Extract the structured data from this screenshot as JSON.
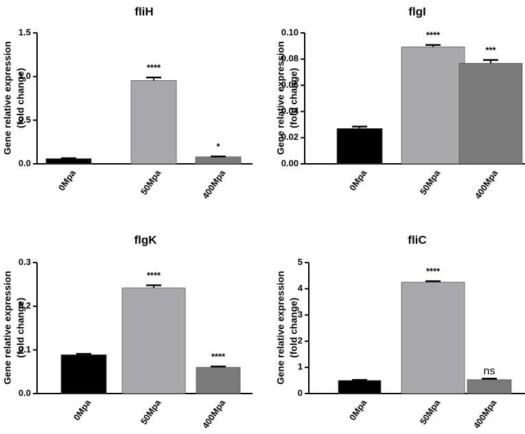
{
  "chart_data": [
    {
      "type": "bar",
      "title": "fliH",
      "ylabel_line1": "Gene relative expression",
      "ylabel_line2": "(fold change)",
      "categories": [
        "0Mpa",
        "50Mpa",
        "400Mpa"
      ],
      "values": [
        0.06,
        0.955,
        0.08
      ],
      "errors": [
        0.005,
        0.035,
        0.005
      ],
      "colors": [
        "#000000",
        "#a9a9ab",
        "#7a7a7a"
      ],
      "significance": [
        "",
        "****",
        "*"
      ],
      "ylim": [
        0,
        1.5
      ],
      "yticks": [
        0.0,
        0.5,
        1.0,
        1.5
      ],
      "ytick_labels": [
        "0.0",
        "0.5",
        "1.0",
        "1.5"
      ]
    },
    {
      "type": "bar",
      "title": "flgI",
      "ylabel_line1": "Gene relative expression",
      "ylabel_line2": "(fold change)",
      "categories": [
        "0Mpa",
        "50Mpa",
        "400Mpa"
      ],
      "values": [
        0.027,
        0.0893,
        0.0768
      ],
      "errors": [
        0.0015,
        0.0015,
        0.0025
      ],
      "colors": [
        "#000000",
        "#a9a9ab",
        "#7a7a7a"
      ],
      "significance": [
        "",
        "****",
        "***"
      ],
      "ylim": [
        0,
        0.1
      ],
      "yticks": [
        0.0,
        0.02,
        0.04,
        0.06,
        0.08,
        0.1
      ],
      "ytick_labels": [
        "0.00",
        "0.02",
        "0.04",
        "0.06",
        "0.08",
        "0.10"
      ]
    },
    {
      "type": "bar",
      "title": "flgK",
      "ylabel_line1": "Gene relative expression",
      "ylabel_line2": "(fold change)",
      "categories": [
        "0Mpa",
        "50Mpa",
        "400Mpa"
      ],
      "values": [
        0.089,
        0.242,
        0.06
      ],
      "errors": [
        0.002,
        0.006,
        0.002
      ],
      "colors": [
        "#000000",
        "#a9a9ab",
        "#7a7a7a"
      ],
      "significance": [
        "",
        "****",
        "****"
      ],
      "ylim": [
        0,
        0.3
      ],
      "yticks": [
        0.0,
        0.1,
        0.2,
        0.3
      ],
      "ytick_labels": [
        "0.0",
        "0.1",
        "0.2",
        "0.3"
      ]
    },
    {
      "type": "bar",
      "title": "fliC",
      "ylabel_line1": "Gene relative expression",
      "ylabel_line2": "(fold change)",
      "categories": [
        "0Mpa",
        "50Mpa",
        "400Mpa"
      ],
      "values": [
        0.5,
        4.25,
        0.53
      ],
      "errors": [
        0.02,
        0.04,
        0.04
      ],
      "colors": [
        "#000000",
        "#a9a9ab",
        "#7a7a7a"
      ],
      "significance": [
        "",
        "****",
        "ns"
      ],
      "ylim": [
        0,
        5
      ],
      "yticks": [
        0,
        1,
        2,
        3,
        4,
        5
      ],
      "ytick_labels": [
        "0",
        "1",
        "2",
        "3",
        "4",
        "5"
      ]
    }
  ]
}
